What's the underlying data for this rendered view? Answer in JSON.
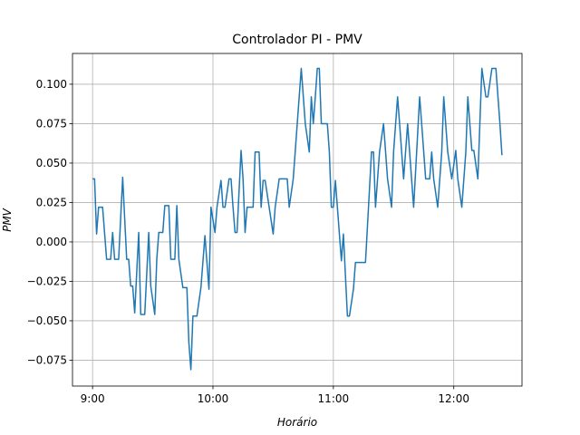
{
  "chart_data": {
    "type": "line",
    "title": "Controlador PI - PMV",
    "xlabel": "Horário",
    "ylabel": "PMV",
    "color": "#1f77b4",
    "grid": true,
    "xlim": [
      "8:50",
      "12:34"
    ],
    "xticks": [
      "9:00",
      "10:00",
      "11:00",
      "12:00"
    ],
    "ylim": [
      -0.0914,
      0.1195
    ],
    "yticks": [
      {
        "value": -0.075,
        "label": "−0.075"
      },
      {
        "value": -0.05,
        "label": "−0.050"
      },
      {
        "value": -0.025,
        "label": "−0.025"
      },
      {
        "value": 0,
        "label": "0.000"
      },
      0.025,
      {
        "value": 0.05,
        "label": "0.050"
      },
      0.075,
      {
        "value": 0.1,
        "label": "0.100"
      }
    ],
    "x": [
      "9:00",
      "9:01",
      "9:02",
      "9:03",
      "9:05",
      "9:07",
      "9:09",
      "9:10",
      "9:11",
      "9:13",
      "9:15",
      "9:17",
      "9:18",
      "9:19",
      "9:20",
      "9:21",
      "9:23",
      "9:24",
      "9:26",
      "9:28",
      "9:29",
      "9:31",
      "9:32",
      "9:33",
      "9:35",
      "9:36",
      "9:38",
      "9:39",
      "9:41",
      "9:42",
      "9:43",
      "9:45",
      "9:47",
      "9:48",
      "9:49",
      "9:50",
      "9:52",
      "9:54",
      "9:56",
      "9:58",
      "9:59",
      "10:01",
      "10:02",
      "10:04",
      "10:05",
      "10:06",
      "10:08",
      "10:09",
      "10:10",
      "10:11",
      "10:12",
      "10:14",
      "10:15",
      "10:16",
      "10:17",
      "10:20",
      "10:21",
      "10:23",
      "10:24",
      "10:25",
      "10:26",
      "10:28",
      "10:30",
      "10:31",
      "10:33",
      "10:37",
      "10:38",
      "10:40",
      "10:42",
      "10:44",
      "10:46",
      "10:48",
      "10:49",
      "10:50",
      "10:51",
      "10:52",
      "10:53",
      "10:54",
      "10:56",
      "10:57",
      "10:58",
      "10:59",
      "11:00",
      "11:01",
      "11:02",
      "11:04",
      "11:05",
      "11:07",
      "11:08",
      "11:10",
      "11:11",
      "11:12",
      "11:16",
      "11:19",
      "11:20",
      "11:21",
      "11:23",
      "11:25",
      "11:27",
      "11:29",
      "11:30",
      "11:32",
      "11:33",
      "11:35",
      "11:37",
      "11:38",
      "11:40",
      "11:43",
      "11:44",
      "11:46",
      "11:48",
      "11:49",
      "11:50",
      "11:52",
      "11:54",
      "11:55",
      "11:57",
      "11:59",
      "12:01",
      "12:02",
      "12:04",
      "12:06",
      "12:07",
      "12:09",
      "12:10",
      "12:12",
      "12:14",
      "12:16",
      "12:17",
      "12:19",
      "12:21",
      "12:23",
      "12:24"
    ],
    "values": [
      0.04,
      0.04,
      0.005,
      0.022,
      0.022,
      -0.011,
      -0.011,
      0.006,
      -0.011,
      -0.011,
      0.041,
      -0.011,
      -0.011,
      -0.028,
      -0.028,
      -0.045,
      0.006,
      -0.046,
      -0.046,
      0.006,
      -0.028,
      -0.046,
      -0.011,
      0.006,
      0.006,
      0.023,
      0.023,
      -0.011,
      -0.011,
      0.023,
      -0.011,
      -0.029,
      -0.029,
      -0.064,
      -0.081,
      -0.047,
      -0.047,
      -0.029,
      0.004,
      -0.03,
      0.022,
      0.006,
      0.022,
      0.039,
      0.022,
      0.022,
      0.04,
      0.04,
      0.022,
      0.006,
      0.006,
      0.058,
      0.04,
      0.006,
      0.022,
      0.022,
      0.057,
      0.057,
      0.022,
      0.039,
      0.039,
      0.022,
      0.005,
      0.022,
      0.04,
      0.04,
      0.022,
      0.04,
      0.075,
      0.11,
      0.075,
      0.057,
      0.092,
      0.075,
      0.092,
      0.11,
      0.11,
      0.075,
      0.075,
      0.075,
      0.057,
      0.022,
      0.022,
      0.039,
      0.022,
      -0.012,
      0.005,
      -0.047,
      -0.047,
      -0.03,
      -0.013,
      -0.013,
      -0.013,
      0.057,
      0.057,
      0.022,
      0.057,
      0.075,
      0.04,
      0.022,
      0.057,
      0.092,
      0.075,
      0.04,
      0.075,
      0.057,
      0.022,
      0.092,
      0.075,
      0.04,
      0.04,
      0.057,
      0.04,
      0.022,
      0.057,
      0.092,
      0.057,
      0.04,
      0.058,
      0.04,
      0.022,
      0.057,
      0.092,
      0.058,
      0.058,
      0.04,
      0.11,
      0.092,
      0.092,
      0.11,
      0.11,
      0.075,
      0.055
    ]
  }
}
